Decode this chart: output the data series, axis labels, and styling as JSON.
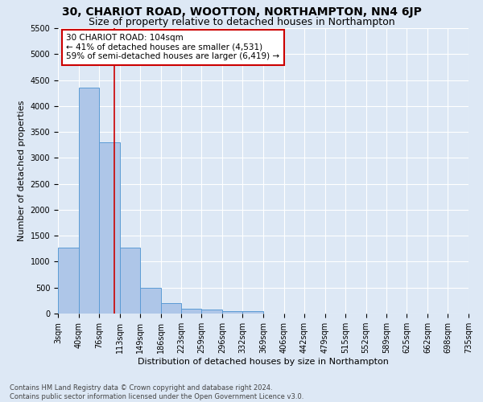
{
  "title": "30, CHARIOT ROAD, WOOTTON, NORTHAMPTON, NN4 6JP",
  "subtitle": "Size of property relative to detached houses in Northampton",
  "xlabel": "Distribution of detached houses by size in Northampton",
  "ylabel": "Number of detached properties",
  "footnote": "Contains HM Land Registry data © Crown copyright and database right 2024.\nContains public sector information licensed under the Open Government Licence v3.0.",
  "bin_edges": [
    3,
    40,
    76,
    113,
    149,
    186,
    223,
    259,
    296,
    332,
    369,
    406,
    442,
    479,
    515,
    552,
    589,
    625,
    662,
    698,
    735
  ],
  "bar_heights": [
    1270,
    4350,
    3300,
    1270,
    490,
    200,
    100,
    70,
    50,
    50,
    0,
    0,
    0,
    0,
    0,
    0,
    0,
    0,
    0,
    0
  ],
  "bar_color": "#aec6e8",
  "bar_edge_color": "#5b9bd5",
  "property_size": 104,
  "vline_color": "#cc0000",
  "annotation_line1": "30 CHARIOT ROAD: 104sqm",
  "annotation_line2": "← 41% of detached houses are smaller (4,531)",
  "annotation_line3": "59% of semi-detached houses are larger (6,419) →",
  "annotation_box_color": "#ffffff",
  "annotation_box_edge": "#cc0000",
  "ylim": [
    0,
    5500
  ],
  "yticks": [
    0,
    500,
    1000,
    1500,
    2000,
    2500,
    3000,
    3500,
    4000,
    4500,
    5000,
    5500
  ],
  "background_color": "#dde8f5",
  "grid_color": "#ffffff",
  "title_fontsize": 10,
  "subtitle_fontsize": 9,
  "tick_label_fontsize": 7,
  "footnote_fontsize": 6,
  "ylabel_fontsize": 8,
  "xlabel_fontsize": 8
}
